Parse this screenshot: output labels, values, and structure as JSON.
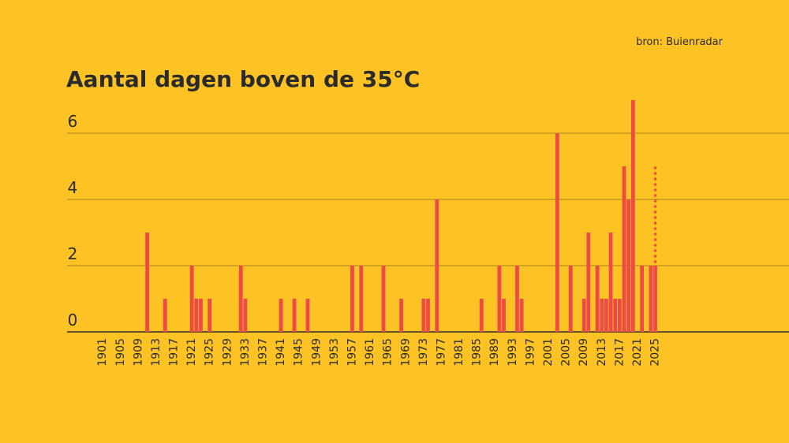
{
  "chart_data": {
    "type": "bar",
    "title": "Aantal dagen boven de 35°C",
    "source": "bron: Buienradar",
    "x": [
      1901,
      1902,
      1903,
      1904,
      1905,
      1906,
      1907,
      1908,
      1909,
      1910,
      1911,
      1912,
      1913,
      1914,
      1915,
      1916,
      1917,
      1918,
      1919,
      1920,
      1921,
      1922,
      1923,
      1924,
      1925,
      1926,
      1927,
      1928,
      1929,
      1930,
      1931,
      1932,
      1933,
      1934,
      1935,
      1936,
      1937,
      1938,
      1939,
      1940,
      1941,
      1942,
      1943,
      1944,
      1945,
      1946,
      1947,
      1948,
      1949,
      1950,
      1951,
      1952,
      1953,
      1954,
      1955,
      1956,
      1957,
      1958,
      1959,
      1960,
      1961,
      1962,
      1963,
      1964,
      1965,
      1966,
      1967,
      1968,
      1969,
      1970,
      1971,
      1972,
      1973,
      1974,
      1975,
      1976,
      1977,
      1978,
      1979,
      1980,
      1981,
      1982,
      1983,
      1984,
      1985,
      1986,
      1987,
      1988,
      1989,
      1990,
      1991,
      1992,
      1993,
      1994,
      1995,
      1996,
      1997,
      1998,
      1999,
      2000,
      2001,
      2002,
      2003,
      2004,
      2005,
      2006,
      2007,
      2008,
      2009,
      2010,
      2011,
      2012,
      2013,
      2014,
      2015,
      2016,
      2017,
      2018,
      2019,
      2020,
      2021,
      2022,
      2023,
      2024,
      2025
    ],
    "values": [
      0,
      0,
      0,
      0,
      0,
      0,
      0,
      0,
      0,
      0,
      3,
      0,
      0,
      0,
      1,
      0,
      0,
      0,
      0,
      0,
      2,
      1,
      1,
      0,
      1,
      0,
      0,
      0,
      0,
      0,
      0,
      2,
      1,
      0,
      0,
      0,
      0,
      0,
      0,
      0,
      1,
      0,
      0,
      1,
      0,
      0,
      1,
      0,
      0,
      0,
      0,
      0,
      0,
      0,
      0,
      0,
      2,
      0,
      2,
      0,
      0,
      0,
      0,
      2,
      0,
      0,
      0,
      1,
      0,
      0,
      0,
      0,
      1,
      1,
      0,
      4,
      0,
      0,
      0,
      0,
      0,
      0,
      0,
      0,
      0,
      1,
      0,
      0,
      0,
      2,
      1,
      0,
      0,
      2,
      1,
      0,
      0,
      0,
      0,
      0,
      0,
      0,
      6,
      0,
      0,
      2,
      0,
      0,
      1,
      3,
      0,
      2,
      1,
      1,
      3,
      1,
      1,
      5,
      4,
      7,
      0,
      2,
      0,
      2,
      2
    ],
    "projection": {
      "x": 2025,
      "value": 5
    },
    "color": "#ee4a46",
    "xlim": [
      1893,
      2055
    ],
    "xticks": [
      1901,
      1905,
      1909,
      1913,
      1917,
      1921,
      1925,
      1929,
      1933,
      1937,
      1941,
      1945,
      1949,
      1953,
      1957,
      1961,
      1965,
      1969,
      1973,
      1977,
      1981,
      1985,
      1989,
      1993,
      1997,
      2001,
      2005,
      2009,
      2013,
      2017,
      2021,
      2025
    ],
    "ylim": [
      0,
      7
    ],
    "yticks": [
      0,
      2,
      4,
      6
    ],
    "grid": true
  }
}
